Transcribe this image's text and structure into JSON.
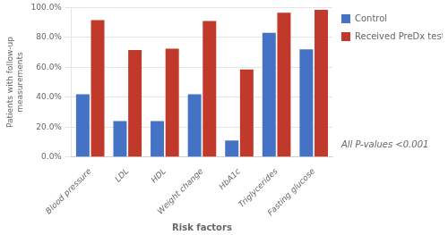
{
  "chart_data": {
    "type": "bar",
    "categories": [
      "Blood pressure",
      "LDL",
      "HDL",
      "Weight change",
      "HbA1c",
      "Triglycerides",
      "Fasting glucose"
    ],
    "series": [
      {
        "name": "Control",
        "color": "#4472C4",
        "values": [
          42.0,
          24.0,
          24.0,
          42.0,
          11.0,
          83.0,
          72.0
        ]
      },
      {
        "name": "Received PreDx test",
        "color": "#C0392B",
        "values": [
          91.5,
          71.5,
          72.5,
          91.0,
          58.5,
          96.5,
          98.5
        ]
      }
    ],
    "ylabel": "Patients with follow-up\nmeasurements",
    "xlabel": "Risk factors",
    "ylim": [
      0,
      100
    ],
    "yticks": [
      {
        "value": 0,
        "label": "0.0%"
      },
      {
        "value": 20,
        "label": "20.0%"
      },
      {
        "value": 40,
        "label": "40.0%"
      },
      {
        "value": 60,
        "label": "60.0%"
      },
      {
        "value": 80,
        "label": "80.0%"
      },
      {
        "value": 100,
        "label": "100.0%"
      }
    ],
    "grid": true,
    "legend": "right",
    "annotation": "All P-values <0.001"
  }
}
